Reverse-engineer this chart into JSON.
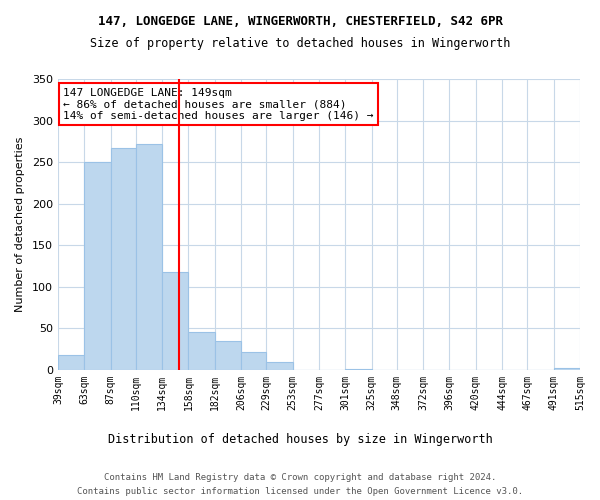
{
  "title": "147, LONGEDGE LANE, WINGERWORTH, CHESTERFIELD, S42 6PR",
  "subtitle": "Size of property relative to detached houses in Wingerworth",
  "xlabel": "Distribution of detached houses by size in Wingerworth",
  "ylabel": "Number of detached properties",
  "bar_edges": [
    39,
    63,
    87,
    110,
    134,
    158,
    182,
    206,
    229,
    253,
    277,
    301,
    325,
    348,
    372,
    396,
    420,
    444,
    467,
    491,
    515
  ],
  "bar_heights": [
    18,
    250,
    267,
    272,
    118,
    45,
    35,
    22,
    9,
    0,
    0,
    1,
    0,
    0,
    0,
    0,
    0,
    0,
    0,
    2
  ],
  "bar_color": "#bdd7ee",
  "bar_edge_color": "#9bc2e6",
  "vline_x": 149,
  "vline_color": "#FF0000",
  "annotation_title": "147 LONGEDGE LANE: 149sqm",
  "annotation_line1": "← 86% of detached houses are smaller (884)",
  "annotation_line2": "14% of semi-detached houses are larger (146) →",
  "annotation_box_color": "#FF0000",
  "ylim": [
    0,
    350
  ],
  "yticks": [
    0,
    50,
    100,
    150,
    200,
    250,
    300,
    350
  ],
  "footnote1": "Contains HM Land Registry data © Crown copyright and database right 2024.",
  "footnote2": "Contains public sector information licensed under the Open Government Licence v3.0.",
  "background_color": "#ffffff",
  "grid_color": "#c8d8e8"
}
